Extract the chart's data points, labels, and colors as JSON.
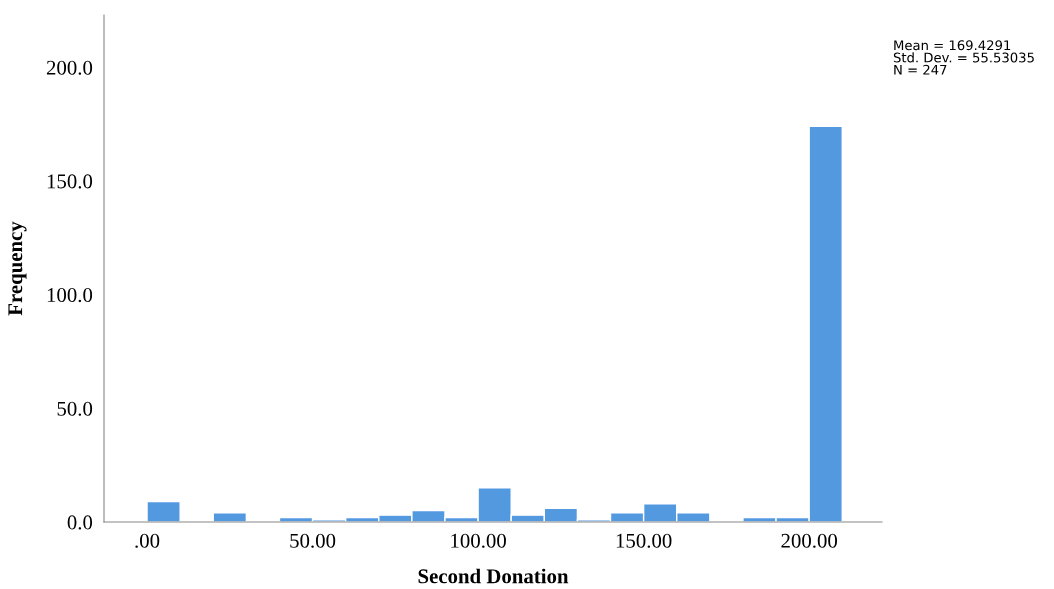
{
  "chart_data": {
    "type": "histogram",
    "xlabel": "Second Donation",
    "ylabel": "Frequency",
    "bins": [
      0,
      10,
      20,
      30,
      40,
      50,
      60,
      70,
      80,
      90,
      100,
      110,
      120,
      130,
      140,
      150,
      160,
      170,
      180,
      190,
      200,
      210
    ],
    "values": [
      9,
      0,
      4,
      0,
      2,
      1,
      2,
      3,
      5,
      2,
      15,
      3,
      6,
      1,
      4,
      8,
      4,
      0,
      2,
      2,
      174
    ],
    "color": "#5399e0",
    "xlim": [
      -13,
      222
    ],
    "ylim": [
      0,
      223
    ],
    "xticks": [
      {
        "value": 0,
        "label": ".00"
      },
      {
        "value": 50,
        "label": "50.00"
      },
      {
        "value": 100,
        "label": "100.00"
      },
      {
        "value": 150,
        "label": "150.00"
      },
      {
        "value": 200,
        "label": "200.00"
      }
    ],
    "yticks": [
      {
        "value": 0,
        "label": "0.0"
      },
      {
        "value": 50,
        "label": "50.0"
      },
      {
        "value": 100,
        "label": "100.0"
      },
      {
        "value": 150,
        "label": "150.0"
      },
      {
        "value": 200,
        "label": "200.0"
      }
    ],
    "grid": false,
    "legend": false,
    "annotations": [
      "Mean = 169.4291\nStd. Dev. = 55.53035\nN = 247"
    ]
  }
}
